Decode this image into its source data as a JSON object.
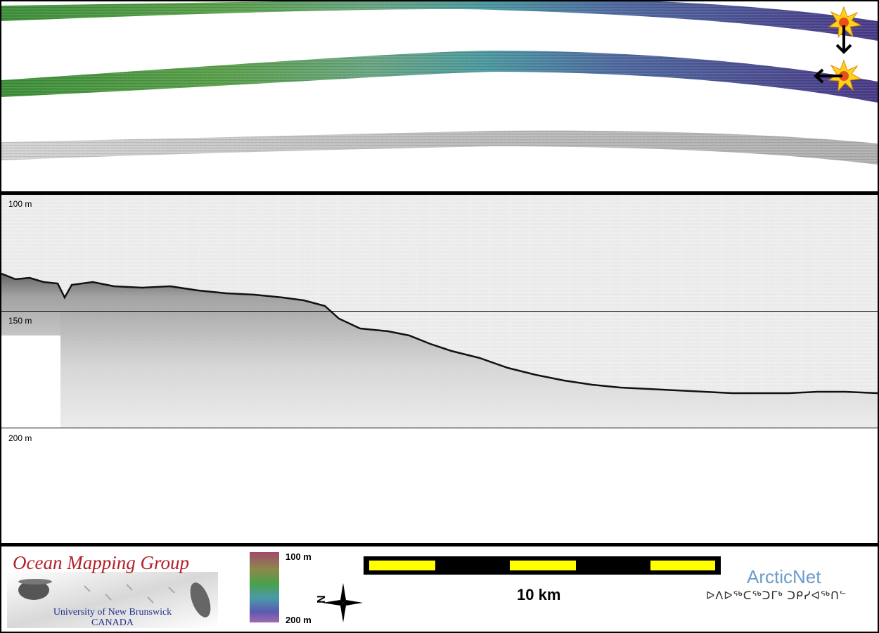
{
  "profile": {
    "depth_labels": [
      "100 m",
      "150 m",
      "200 m"
    ]
  },
  "legend": {
    "organization": {
      "name": "Ocean Mapping Group",
      "university": "University of New Brunswick",
      "country": "CANADA"
    },
    "colorbar": {
      "top_label": "100 m",
      "bottom_label": "200 m"
    },
    "north_arrow_letter": "N",
    "scale_bar_label": "10 km",
    "partner": {
      "name": "ArcticNet",
      "inuktitut": "ᐅᐱᐅᖅᑕᖅᑐᒥᒃ ᑐᑭᓯᐊᖅᑎᓪ"
    }
  },
  "colors": {
    "swath_west": "#4e9a3c",
    "swath_mid": "#4aa59a",
    "swath_east": "#4d3f8e",
    "scale_yellow": "#ffff00",
    "omg_red": "#b3202a",
    "omg_blue": "#22348c",
    "arcticnet_blue": "#6a9ccc"
  },
  "icons": [
    "sun-marker-icon",
    "arrow-down-icon",
    "arrow-left-icon",
    "north-arrow-icon"
  ]
}
